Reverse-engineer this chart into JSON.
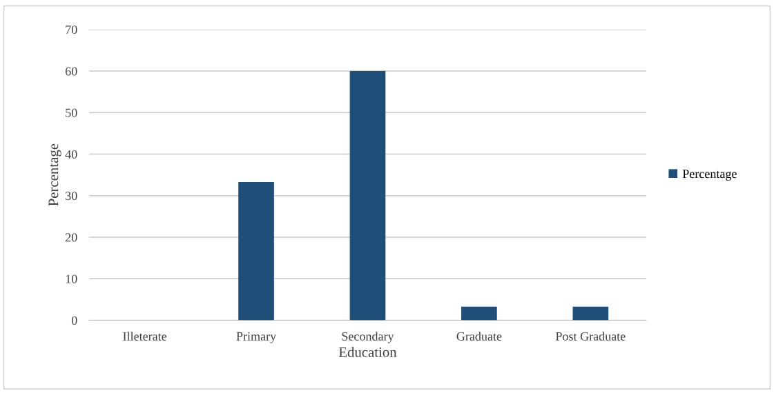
{
  "chart_data": {
    "type": "bar",
    "xlabel": "Education",
    "ylabel": "Percentage",
    "categories": [
      "Illeterate",
      "Primary",
      "Secondary",
      "Graduate",
      "Post Graduate"
    ],
    "series": [
      {
        "name": "Percentage",
        "color": "#1f4e79",
        "values": [
          0,
          33.3,
          60,
          3.3,
          3.3
        ]
      }
    ],
    "ylim": [
      0,
      70
    ],
    "yticks": [
      0,
      10,
      20,
      30,
      40,
      50,
      60,
      70
    ],
    "grid": "y",
    "legend": "right"
  }
}
